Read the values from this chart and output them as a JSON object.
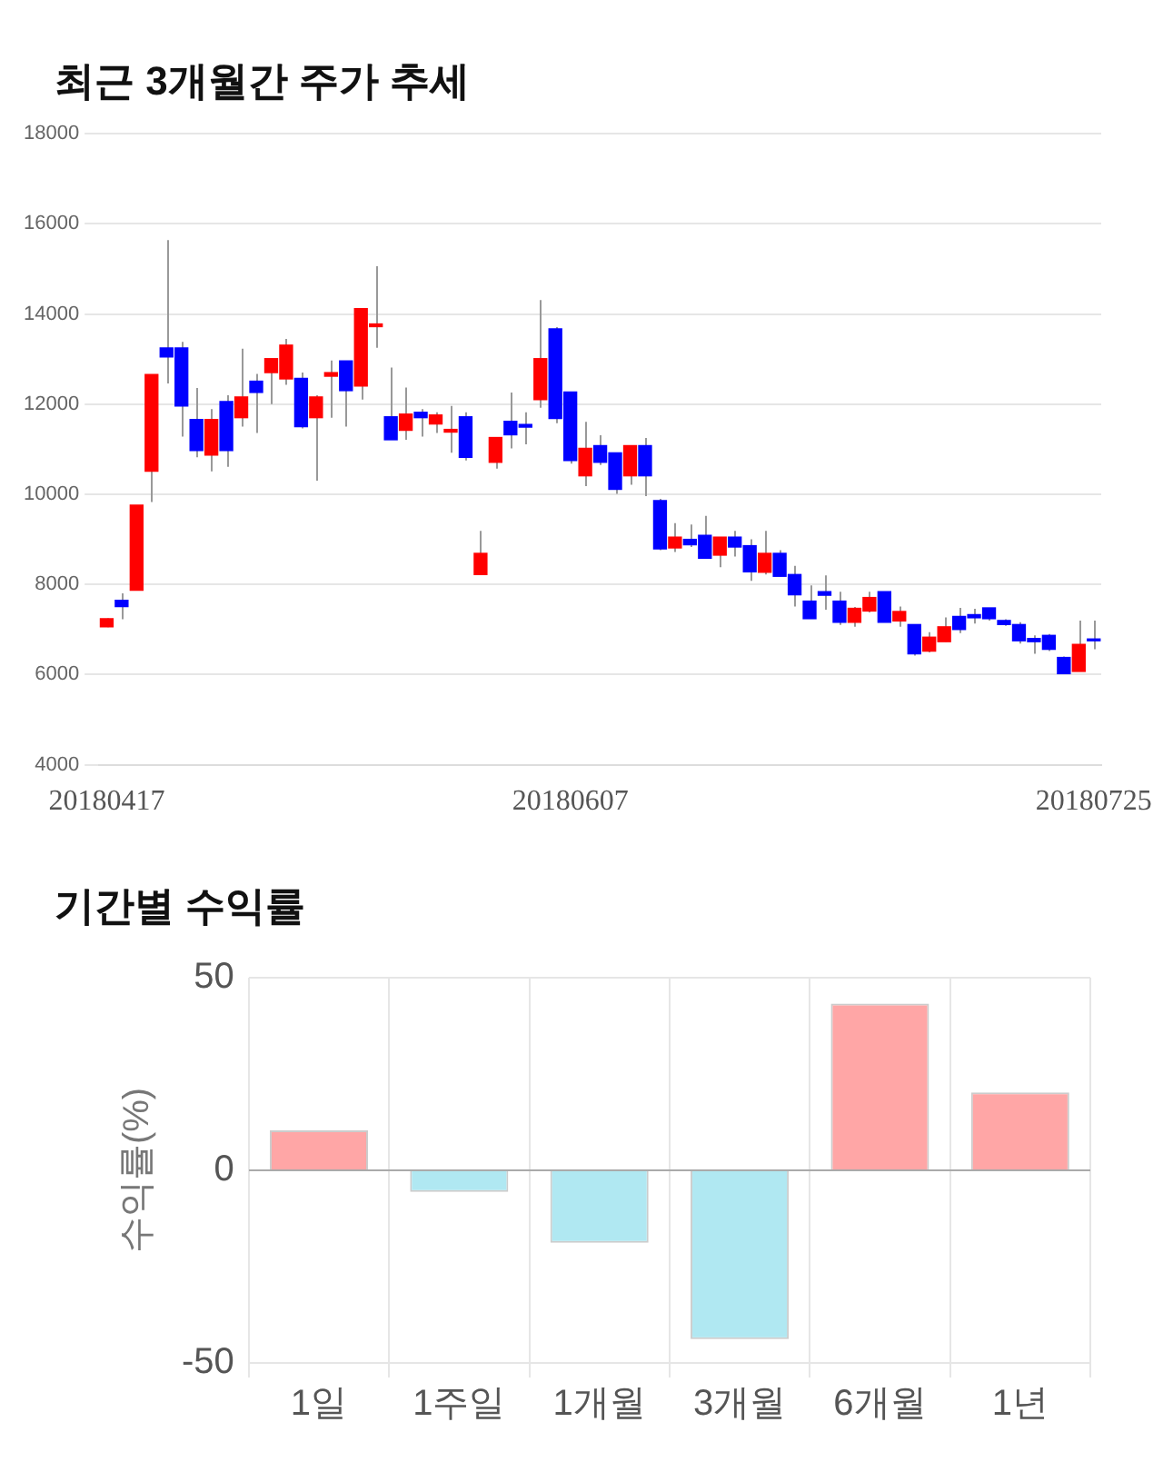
{
  "chart_data": [
    {
      "type": "candlestick",
      "title": "최근 3개월간 주가 추세",
      "categories": [
        "20180417",
        null,
        null,
        null,
        null,
        null,
        null,
        null,
        null,
        null,
        null,
        null,
        null,
        null,
        null,
        null,
        null,
        null,
        null,
        null,
        null,
        null,
        null,
        null,
        null,
        null,
        null,
        null,
        null,
        null,
        null,
        "20180607",
        null,
        null,
        null,
        null,
        null,
        null,
        null,
        null,
        null,
        null,
        null,
        null,
        null,
        null,
        null,
        null,
        null,
        null,
        null,
        null,
        null,
        null,
        null,
        null,
        null,
        null,
        null,
        null,
        null,
        null,
        null,
        null,
        null,
        null,
        "20180725"
      ],
      "ohlc": [
        [
          7060,
          7250,
          7050,
          7240
        ],
        [
          7650,
          7800,
          7230,
          7510
        ],
        [
          7870,
          9760,
          7870,
          9760
        ],
        [
          10510,
          12660,
          9830,
          12660
        ],
        [
          13250,
          15640,
          12460,
          13050
        ],
        [
          13250,
          13380,
          11280,
          11960
        ],
        [
          11660,
          12360,
          10820,
          10970
        ],
        [
          10870,
          11890,
          10510,
          11660
        ],
        [
          12060,
          12200,
          10610,
          10970
        ],
        [
          11700,
          13230,
          11500,
          12160
        ],
        [
          12510,
          12670,
          11360,
          12260
        ],
        [
          12700,
          13010,
          12000,
          13010
        ],
        [
          12560,
          13450,
          12430,
          13310
        ],
        [
          12570,
          12700,
          11460,
          11500
        ],
        [
          11700,
          12200,
          10300,
          12160
        ],
        [
          12620,
          12970,
          11700,
          12700
        ],
        [
          12960,
          12960,
          11500,
          12300
        ],
        [
          12400,
          14120,
          12100,
          14120
        ],
        [
          13720,
          15060,
          13250,
          13780
        ],
        [
          11720,
          12810,
          11210,
          11210
        ],
        [
          11420,
          12370,
          11210,
          11780
        ],
        [
          11820,
          11890,
          11280,
          11700
        ],
        [
          11560,
          11820,
          11360,
          11760
        ],
        [
          11380,
          11960,
          10920,
          11440
        ],
        [
          11720,
          11820,
          10750,
          10820
        ],
        [
          8220,
          9190,
          8220,
          8690
        ],
        [
          10710,
          11260,
          10570,
          11260
        ],
        [
          11620,
          12260,
          11020,
          11320
        ],
        [
          11550,
          11820,
          11110,
          11490
        ],
        [
          12100,
          14310,
          11920,
          13010
        ],
        [
          13670,
          13710,
          11580,
          11680
        ],
        [
          12270,
          12270,
          10680,
          10750
        ],
        [
          10410,
          11610,
          10180,
          11020
        ],
        [
          11080,
          11310,
          10650,
          10710
        ],
        [
          10920,
          10920,
          10010,
          10110
        ],
        [
          10410,
          11080,
          10210,
          11080
        ],
        [
          11080,
          11250,
          9960,
          10410
        ],
        [
          9860,
          9900,
          8760,
          8790
        ],
        [
          8810,
          9360,
          8720,
          9050
        ],
        [
          9000,
          9330,
          8830,
          8880
        ],
        [
          9090,
          9520,
          8580,
          8580
        ],
        [
          8650,
          9050,
          8380,
          9050
        ],
        [
          9050,
          9190,
          8620,
          8830
        ],
        [
          8860,
          9000,
          8080,
          8280
        ],
        [
          8270,
          9190,
          8220,
          8690
        ],
        [
          8690,
          8760,
          8180,
          8180
        ],
        [
          8220,
          8410,
          7510,
          7770
        ],
        [
          7630,
          7980,
          7240,
          7240
        ],
        [
          7840,
          8200,
          7440,
          7760
        ],
        [
          7630,
          7840,
          7100,
          7160
        ],
        [
          7160,
          7500,
          7060,
          7470
        ],
        [
          7410,
          7840,
          7380,
          7710
        ],
        [
          7840,
          7840,
          7160,
          7160
        ],
        [
          7190,
          7510,
          7060,
          7400
        ],
        [
          7110,
          7110,
          6420,
          6460
        ],
        [
          6520,
          6940,
          6490,
          6830
        ],
        [
          6730,
          7270,
          6730,
          7060
        ],
        [
          7290,
          7480,
          6920,
          7000
        ],
        [
          7330,
          7460,
          7130,
          7260
        ],
        [
          7480,
          7480,
          7200,
          7240
        ],
        [
          7200,
          7230,
          7080,
          7110
        ],
        [
          7110,
          7160,
          6690,
          6750
        ],
        [
          6800,
          6870,
          6460,
          6730
        ],
        [
          6870,
          6900,
          6520,
          6560
        ],
        [
          6380,
          6400,
          6020,
          6020
        ],
        [
          6070,
          7200,
          6070,
          6670
        ],
        [
          6790,
          7200,
          6560,
          6750
        ]
      ],
      "colors": [
        "#ff0000",
        "#0000ff",
        "#ff0000",
        "#ff0000",
        "#0000ff",
        "#0000ff",
        "#0000ff",
        "#ff0000",
        "#0000ff",
        "#ff0000",
        "#0000ff",
        "#ff0000",
        "#ff0000",
        "#0000ff",
        "#ff0000",
        "#ff0000",
        "#0000ff",
        "#ff0000",
        "#ff0000",
        "#0000ff",
        "#ff0000",
        "#0000ff",
        "#ff0000",
        "#ff0000",
        "#0000ff",
        "#ff0000",
        "#ff0000",
        "#0000ff",
        "#0000ff",
        "#ff0000",
        "#0000ff",
        "#0000ff",
        "#ff0000",
        "#0000ff",
        "#0000ff",
        "#ff0000",
        "#0000ff",
        "#0000ff",
        "#ff0000",
        "#0000ff",
        "#0000ff",
        "#ff0000",
        "#0000ff",
        "#0000ff",
        "#ff0000",
        "#0000ff",
        "#0000ff",
        "#0000ff",
        "#0000ff",
        "#0000ff",
        "#ff0000",
        "#ff0000",
        "#0000ff",
        "#ff0000",
        "#0000ff",
        "#ff0000",
        "#ff0000",
        "#0000ff",
        "#0000ff",
        "#0000ff",
        "#0000ff",
        "#0000ff",
        "#0000ff",
        "#0000ff",
        "#0000ff",
        "#ff0000",
        "#0000ff"
      ],
      "ylim": [
        4000,
        18000
      ],
      "yticks": [
        4000,
        6000,
        8000,
        10000,
        12000,
        14000,
        16000,
        18000
      ],
      "grid": "y"
    },
    {
      "type": "bar",
      "title": "기간별 수익률",
      "ylabel": "수익률(%)",
      "categories": [
        "1일",
        "1주일",
        "1개월",
        "3개월",
        "6개월",
        "1년"
      ],
      "values": [
        10.4,
        -5.6,
        -18.8,
        -43.8,
        43.3,
        20.2
      ],
      "colors": [
        "#ffa6a6",
        "#b0e8f2",
        "#b0e8f2",
        "#b0e8f2",
        "#ffa6a6",
        "#ffa6a6"
      ],
      "ylim": [
        -50,
        50
      ],
      "yticks": [
        -50,
        0,
        50
      ],
      "grid": true
    }
  ]
}
